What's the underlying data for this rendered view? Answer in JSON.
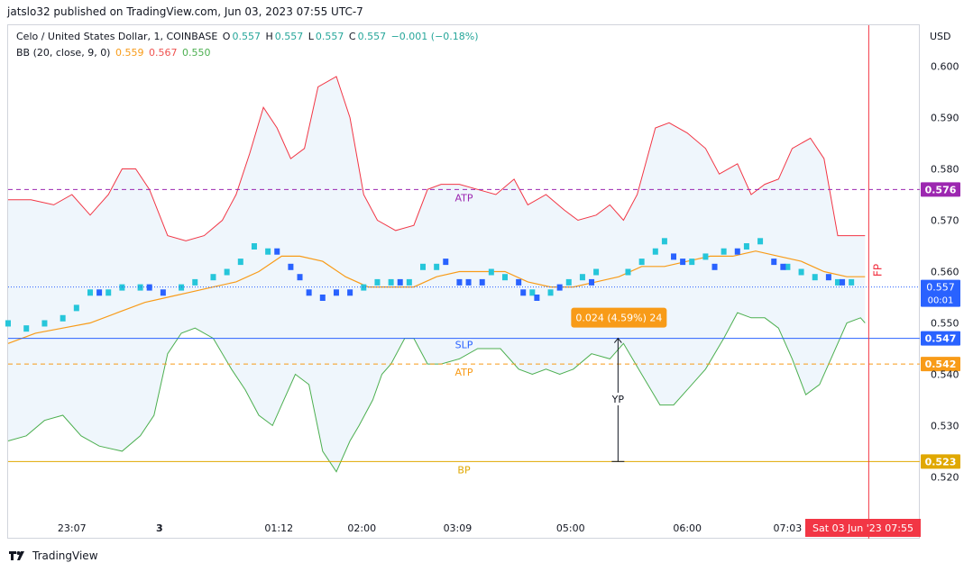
{
  "header": {
    "published": "jatslo32 published on TradingView.com, Jun 03, 2023 07:55 UTC-7"
  },
  "legend": {
    "symbol": "Celo / United States Dollar, 1, COINBASE",
    "o_label": "O",
    "o_value": "0.557",
    "h_label": "H",
    "h_value": "0.557",
    "l_label": "L",
    "l_value": "0.557",
    "c_label": "C",
    "c_value": "0.557",
    "change": "−0.001 (−0.18%)",
    "bb_label": "BB (20, close, 9, 0)",
    "bb_basis": "0.559",
    "bb_upper": "0.567",
    "bb_lower": "0.550"
  },
  "axis": {
    "currency": "USD"
  },
  "footer": {
    "brand": "TradingView"
  },
  "colors": {
    "up": "#26c6da",
    "down": "#2962ff",
    "upper_band": "#f23645",
    "lower_band": "#4caf50",
    "basis": "#f89b18",
    "fill": "#eaf3fb",
    "purple": "#9c27b0",
    "blue": "#2962ff",
    "orange": "#f89b18",
    "yellow": "#e0a800",
    "red": "#f23645"
  },
  "chart_data": {
    "type": "candlestick",
    "title": "Celo / United States Dollar, 1, COINBASE",
    "ylim": [
      0.512,
      0.608
    ],
    "y_ticks": [
      0.52,
      0.53,
      0.54,
      0.55,
      0.56,
      0.57,
      0.58,
      0.59,
      0.6
    ],
    "y_tick_labels": [
      "0.520",
      "0.530",
      "0.540",
      "0.550",
      "0.560",
      "0.570",
      "0.580",
      "0.590",
      "0.600"
    ],
    "x_ticks": [
      {
        "label": "23:07",
        "t": 0.07
      },
      {
        "label": "3",
        "t": 0.166
      },
      {
        "label": "01:12",
        "t": 0.297
      },
      {
        "label": "02:00",
        "t": 0.388
      },
      {
        "label": "03:09",
        "t": 0.493
      },
      {
        "label": "05:00",
        "t": 0.617
      },
      {
        "label": "06:00",
        "t": 0.745
      },
      {
        "label": "07:03",
        "t": 0.855
      }
    ],
    "cursor_time": {
      "label": "Sat 03 Jun '23   07:55",
      "t": 0.944
    },
    "levels": [
      {
        "name": "ATP",
        "value": 0.576,
        "label": "0.576",
        "style": "dashed",
        "color_key": "purple"
      },
      {
        "name": "SLP",
        "value": 0.547,
        "label": "0.547",
        "style": "solid",
        "color_key": "blue"
      },
      {
        "name": "ATP",
        "value": 0.542,
        "label": "0.542",
        "style": "dashed",
        "color_key": "orange"
      },
      {
        "name": "BP",
        "value": 0.523,
        "label": "0.523",
        "style": "solid",
        "color_key": "yellow"
      }
    ],
    "last_price": {
      "value": 0.557,
      "label": "0.557",
      "countdown": "00:01"
    },
    "vertical_marker": {
      "label": "FP",
      "t": 0.944
    },
    "measure": {
      "label": "0.024 (4.59%) 24",
      "axis_label": "YP",
      "t": 0.669,
      "from": 0.523,
      "to": 0.547
    },
    "upper_band": [
      [
        0.0,
        0.574
      ],
      [
        0.025,
        0.574
      ],
      [
        0.05,
        0.573
      ],
      [
        0.07,
        0.575
      ],
      [
        0.09,
        0.571
      ],
      [
        0.11,
        0.575
      ],
      [
        0.125,
        0.58
      ],
      [
        0.14,
        0.58
      ],
      [
        0.155,
        0.576
      ],
      [
        0.175,
        0.567
      ],
      [
        0.195,
        0.566
      ],
      [
        0.215,
        0.567
      ],
      [
        0.235,
        0.57
      ],
      [
        0.25,
        0.575
      ],
      [
        0.265,
        0.583
      ],
      [
        0.28,
        0.592
      ],
      [
        0.295,
        0.588
      ],
      [
        0.31,
        0.582
      ],
      [
        0.325,
        0.584
      ],
      [
        0.34,
        0.596
      ],
      [
        0.36,
        0.598
      ],
      [
        0.375,
        0.59
      ],
      [
        0.39,
        0.575
      ],
      [
        0.405,
        0.57
      ],
      [
        0.425,
        0.568
      ],
      [
        0.445,
        0.569
      ],
      [
        0.46,
        0.576
      ],
      [
        0.475,
        0.577
      ],
      [
        0.495,
        0.577
      ],
      [
        0.515,
        0.576
      ],
      [
        0.535,
        0.575
      ],
      [
        0.555,
        0.578
      ],
      [
        0.57,
        0.573
      ],
      [
        0.59,
        0.575
      ],
      [
        0.61,
        0.572
      ],
      [
        0.625,
        0.57
      ],
      [
        0.645,
        0.571
      ],
      [
        0.66,
        0.573
      ],
      [
        0.675,
        0.57
      ],
      [
        0.69,
        0.575
      ],
      [
        0.71,
        0.588
      ],
      [
        0.725,
        0.589
      ],
      [
        0.745,
        0.587
      ],
      [
        0.765,
        0.584
      ],
      [
        0.78,
        0.579
      ],
      [
        0.8,
        0.581
      ],
      [
        0.815,
        0.575
      ],
      [
        0.83,
        0.577
      ],
      [
        0.845,
        0.578
      ],
      [
        0.86,
        0.584
      ],
      [
        0.88,
        0.586
      ],
      [
        0.895,
        0.582
      ],
      [
        0.91,
        0.567
      ],
      [
        0.925,
        0.567
      ],
      [
        0.94,
        0.567
      ]
    ],
    "lower_band": [
      [
        0.0,
        0.527
      ],
      [
        0.02,
        0.528
      ],
      [
        0.04,
        0.531
      ],
      [
        0.06,
        0.532
      ],
      [
        0.08,
        0.528
      ],
      [
        0.1,
        0.526
      ],
      [
        0.125,
        0.525
      ],
      [
        0.145,
        0.528
      ],
      [
        0.16,
        0.532
      ],
      [
        0.175,
        0.544
      ],
      [
        0.19,
        0.548
      ],
      [
        0.205,
        0.549
      ],
      [
        0.225,
        0.547
      ],
      [
        0.245,
        0.541
      ],
      [
        0.26,
        0.537
      ],
      [
        0.275,
        0.532
      ],
      [
        0.29,
        0.53
      ],
      [
        0.3,
        0.534
      ],
      [
        0.315,
        0.54
      ],
      [
        0.33,
        0.538
      ],
      [
        0.345,
        0.525
      ],
      [
        0.36,
        0.521
      ],
      [
        0.375,
        0.527
      ],
      [
        0.385,
        0.53
      ],
      [
        0.4,
        0.535
      ],
      [
        0.41,
        0.54
      ],
      [
        0.42,
        0.542
      ],
      [
        0.435,
        0.547
      ],
      [
        0.445,
        0.547
      ],
      [
        0.46,
        0.542
      ],
      [
        0.475,
        0.542
      ],
      [
        0.495,
        0.543
      ],
      [
        0.515,
        0.545
      ],
      [
        0.54,
        0.545
      ],
      [
        0.56,
        0.541
      ],
      [
        0.575,
        0.54
      ],
      [
        0.59,
        0.541
      ],
      [
        0.605,
        0.54
      ],
      [
        0.62,
        0.541
      ],
      [
        0.64,
        0.544
      ],
      [
        0.66,
        0.543
      ],
      [
        0.675,
        0.546
      ],
      [
        0.695,
        0.54
      ],
      [
        0.715,
        0.534
      ],
      [
        0.73,
        0.534
      ],
      [
        0.745,
        0.537
      ],
      [
        0.765,
        0.541
      ],
      [
        0.785,
        0.547
      ],
      [
        0.8,
        0.552
      ],
      [
        0.815,
        0.551
      ],
      [
        0.83,
        0.551
      ],
      [
        0.845,
        0.549
      ],
      [
        0.86,
        0.543
      ],
      [
        0.875,
        0.536
      ],
      [
        0.89,
        0.538
      ],
      [
        0.905,
        0.544
      ],
      [
        0.92,
        0.55
      ],
      [
        0.935,
        0.551
      ],
      [
        0.94,
        0.55
      ]
    ],
    "basis": [
      [
        0.0,
        0.546
      ],
      [
        0.03,
        0.548
      ],
      [
        0.06,
        0.549
      ],
      [
        0.09,
        0.55
      ],
      [
        0.12,
        0.552
      ],
      [
        0.15,
        0.554
      ],
      [
        0.175,
        0.555
      ],
      [
        0.2,
        0.556
      ],
      [
        0.225,
        0.557
      ],
      [
        0.25,
        0.558
      ],
      [
        0.275,
        0.56
      ],
      [
        0.3,
        0.563
      ],
      [
        0.32,
        0.563
      ],
      [
        0.345,
        0.562
      ],
      [
        0.37,
        0.559
      ],
      [
        0.395,
        0.557
      ],
      [
        0.42,
        0.557
      ],
      [
        0.445,
        0.557
      ],
      [
        0.47,
        0.559
      ],
      [
        0.495,
        0.56
      ],
      [
        0.52,
        0.56
      ],
      [
        0.545,
        0.56
      ],
      [
        0.57,
        0.558
      ],
      [
        0.595,
        0.557
      ],
      [
        0.62,
        0.557
      ],
      [
        0.645,
        0.558
      ],
      [
        0.67,
        0.559
      ],
      [
        0.695,
        0.561
      ],
      [
        0.72,
        0.561
      ],
      [
        0.745,
        0.562
      ],
      [
        0.77,
        0.563
      ],
      [
        0.795,
        0.563
      ],
      [
        0.82,
        0.564
      ],
      [
        0.845,
        0.563
      ],
      [
        0.87,
        0.562
      ],
      [
        0.895,
        0.56
      ],
      [
        0.92,
        0.559
      ],
      [
        0.94,
        0.559
      ]
    ],
    "candles_up": [
      [
        0.0,
        0.55
      ],
      [
        0.02,
        0.549
      ],
      [
        0.04,
        0.55
      ],
      [
        0.06,
        0.551
      ],
      [
        0.075,
        0.553
      ],
      [
        0.09,
        0.556
      ],
      [
        0.11,
        0.556
      ],
      [
        0.125,
        0.557
      ],
      [
        0.145,
        0.557
      ],
      [
        0.19,
        0.557
      ],
      [
        0.205,
        0.558
      ],
      [
        0.225,
        0.559
      ],
      [
        0.24,
        0.56
      ],
      [
        0.255,
        0.562
      ],
      [
        0.27,
        0.565
      ],
      [
        0.285,
        0.564
      ],
      [
        0.39,
        0.557
      ],
      [
        0.405,
        0.558
      ],
      [
        0.42,
        0.558
      ],
      [
        0.44,
        0.558
      ],
      [
        0.455,
        0.561
      ],
      [
        0.47,
        0.561
      ],
      [
        0.53,
        0.56
      ],
      [
        0.545,
        0.559
      ],
      [
        0.575,
        0.556
      ],
      [
        0.595,
        0.556
      ],
      [
        0.615,
        0.558
      ],
      [
        0.63,
        0.559
      ],
      [
        0.645,
        0.56
      ],
      [
        0.68,
        0.56
      ],
      [
        0.695,
        0.562
      ],
      [
        0.71,
        0.564
      ],
      [
        0.72,
        0.566
      ],
      [
        0.75,
        0.562
      ],
      [
        0.765,
        0.563
      ],
      [
        0.785,
        0.564
      ],
      [
        0.81,
        0.565
      ],
      [
        0.825,
        0.566
      ],
      [
        0.855,
        0.561
      ],
      [
        0.87,
        0.56
      ],
      [
        0.885,
        0.559
      ],
      [
        0.91,
        0.558
      ],
      [
        0.925,
        0.558
      ]
    ],
    "candles_down": [
      [
        0.1,
        0.556
      ],
      [
        0.155,
        0.557
      ],
      [
        0.17,
        0.556
      ],
      [
        0.295,
        0.564
      ],
      [
        0.31,
        0.561
      ],
      [
        0.32,
        0.559
      ],
      [
        0.33,
        0.556
      ],
      [
        0.345,
        0.555
      ],
      [
        0.36,
        0.556
      ],
      [
        0.375,
        0.556
      ],
      [
        0.43,
        0.558
      ],
      [
        0.48,
        0.562
      ],
      [
        0.495,
        0.558
      ],
      [
        0.505,
        0.558
      ],
      [
        0.52,
        0.558
      ],
      [
        0.56,
        0.558
      ],
      [
        0.565,
        0.556
      ],
      [
        0.58,
        0.555
      ],
      [
        0.605,
        0.557
      ],
      [
        0.64,
        0.558
      ],
      [
        0.73,
        0.563
      ],
      [
        0.74,
        0.562
      ],
      [
        0.775,
        0.561
      ],
      [
        0.8,
        0.564
      ],
      [
        0.84,
        0.562
      ],
      [
        0.85,
        0.561
      ],
      [
        0.9,
        0.559
      ],
      [
        0.915,
        0.558
      ]
    ]
  }
}
